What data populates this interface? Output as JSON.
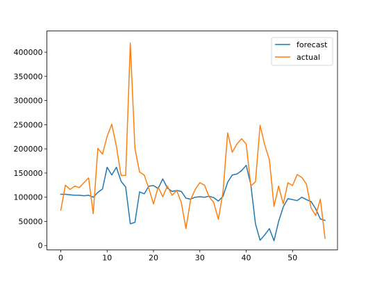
{
  "chart_data": {
    "type": "line",
    "title": "",
    "xlabel": "",
    "ylabel": "",
    "xlim": [
      -3,
      59.7
    ],
    "ylim": [
      -9000,
      444000
    ],
    "xticks": [
      0,
      10,
      20,
      30,
      40,
      50
    ],
    "xtick_labels": [
      "0",
      "10",
      "20",
      "30",
      "40",
      "50"
    ],
    "yticks": [
      0,
      50000,
      100000,
      150000,
      200000,
      250000,
      300000,
      350000,
      400000
    ],
    "ytick_labels": [
      "0",
      "50000",
      "100000",
      "150000",
      "200000",
      "250000",
      "300000",
      "350000",
      "400000"
    ],
    "grid": false,
    "legend_position": "top-right",
    "x": [
      0,
      1,
      2,
      3,
      4,
      5,
      6,
      7,
      8,
      9,
      10,
      11,
      12,
      13,
      14,
      15,
      16,
      17,
      18,
      19,
      20,
      21,
      22,
      23,
      24,
      25,
      26,
      27,
      28,
      29,
      30,
      31,
      32,
      33,
      34,
      35,
      36,
      37,
      38,
      39,
      40,
      41,
      42,
      43,
      44,
      45,
      46,
      47,
      48,
      49,
      50,
      51,
      52,
      53,
      54,
      55,
      56,
      57
    ],
    "series": [
      {
        "name": "forecast",
        "color": "#1f77b4",
        "values": [
          106000,
          106000,
          105000,
          104000,
          104000,
          103000,
          104000,
          100000,
          110000,
          117000,
          162000,
          146000,
          162000,
          133000,
          121000,
          45000,
          48000,
          111000,
          107000,
          123000,
          124000,
          118000,
          138000,
          119000,
          112000,
          114000,
          112000,
          98000,
          96000,
          100000,
          101000,
          100000,
          102000,
          99000,
          92000,
          102000,
          131000,
          146000,
          148000,
          155000,
          166000,
          126000,
          45000,
          11000,
          22000,
          35000,
          10000,
          50000,
          80000,
          97000,
          95000,
          93000,
          100000,
          95000,
          91000,
          76000,
          55000,
          52000
        ]
      },
      {
        "name": "actual",
        "color": "#ff7f0e",
        "values": [
          73000,
          125000,
          116000,
          123000,
          120000,
          130000,
          140000,
          66000,
          201000,
          189000,
          226000,
          251000,
          205000,
          145000,
          145000,
          419000,
          201000,
          152000,
          146000,
          118000,
          86000,
          121000,
          101000,
          123000,
          104000,
          114000,
          89000,
          35000,
          95000,
          116000,
          130000,
          125000,
          101000,
          89000,
          54000,
          111000,
          233000,
          193000,
          210000,
          221000,
          210000,
          123000,
          132000,
          249000,
          208000,
          178000,
          81000,
          123000,
          86000,
          130000,
          124000,
          147000,
          141000,
          127000,
          78000,
          62000,
          96000,
          15000
        ]
      }
    ]
  }
}
